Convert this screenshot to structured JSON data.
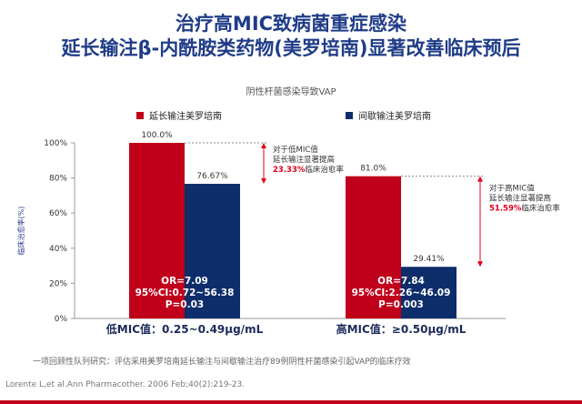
{
  "title_line1": "治疗高MIC致病菌重症感染",
  "title_line2": "延长输注β-内酰胺类药物(美罗培南)显著改善临床预后",
  "footnote": "一项回顾性队列研究：评估采用美罗培南延长输注与间歇输注治疗89例阴性杆菌感染引起VAP的临床疗效",
  "reference": "Lorente L,et al.Ann Pharmacother. 2006 Feb;40(2):219-23.",
  "colors": {
    "title": "#1f3c88",
    "extended": "#c0001a",
    "intermittent": "#0d2d6b",
    "improvement": "#e0001b"
  },
  "chart_data": {
    "type": "bar",
    "title": "阴性杆菌感染导致VAP",
    "ylabel": "临床治愈率(%)",
    "ylim": [
      0,
      100
    ],
    "yticks": [
      "0%",
      "20%",
      "40%",
      "60%",
      "80%",
      "100%"
    ],
    "grid": false,
    "legend_position": "top",
    "categories": [
      "低MIC值：0.25~0.49μg/mL",
      "高MIC值：≥0.50μg/mL"
    ],
    "series": [
      {
        "name": "延长输注美罗培南",
        "values": [
          100.0,
          81.0
        ],
        "labels": [
          "100.0%",
          "81.0%"
        ]
      },
      {
        "name": "间歇输注美罗培南",
        "values": [
          76.67,
          29.41
        ],
        "labels": [
          "76.67%",
          "29.41%"
        ]
      }
    ],
    "stats": [
      {
        "or": "OR=7.09",
        "ci": "95%CI:0.72~56.38",
        "p": "P=0.03"
      },
      {
        "or": "OR=7.84",
        "ci": "95%CI:2.26~46.09",
        "p": "P=0.003"
      }
    ],
    "annotations": [
      {
        "line1": "对于低MIC值",
        "line2": "延长输注显著提高",
        "pct": "23.33%",
        "suffix": "临床治愈率"
      },
      {
        "line1": "对于高MIC值",
        "line2": "延长输注显著提高",
        "pct": "51.59%",
        "suffix": "临床治愈率"
      }
    ]
  }
}
